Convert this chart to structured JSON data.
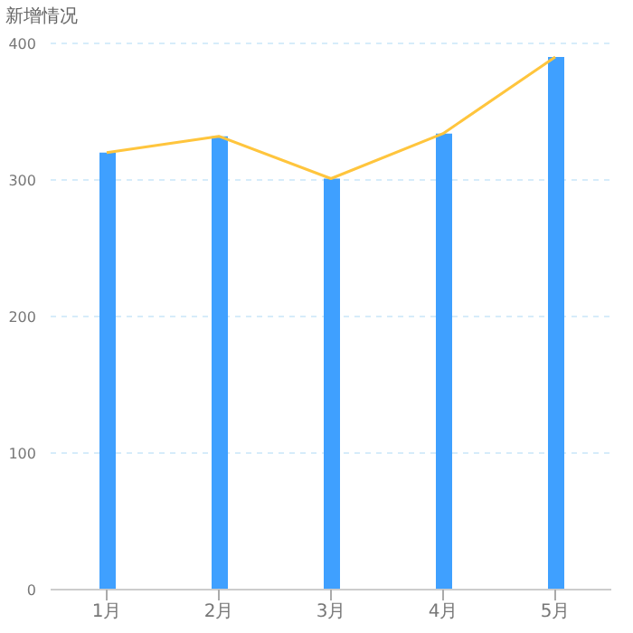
{
  "chart_data": {
    "type": "bar",
    "title": "新增情况",
    "categories": [
      "1月",
      "2月",
      "3月",
      "4月",
      "5月"
    ],
    "series": [
      {
        "color": "#3fa0ff",
        "values": [
          320,
          332,
          301,
          334,
          390
        ]
      },
      {
        "type": "line",
        "color": "#ffc53d",
        "values": [
          320,
          332,
          301,
          334,
          390
        ]
      }
    ],
    "ylim": [
      0,
      400
    ],
    "yticks": [
      0,
      100,
      200,
      300,
      400
    ],
    "grid": "y",
    "marker": "none"
  }
}
